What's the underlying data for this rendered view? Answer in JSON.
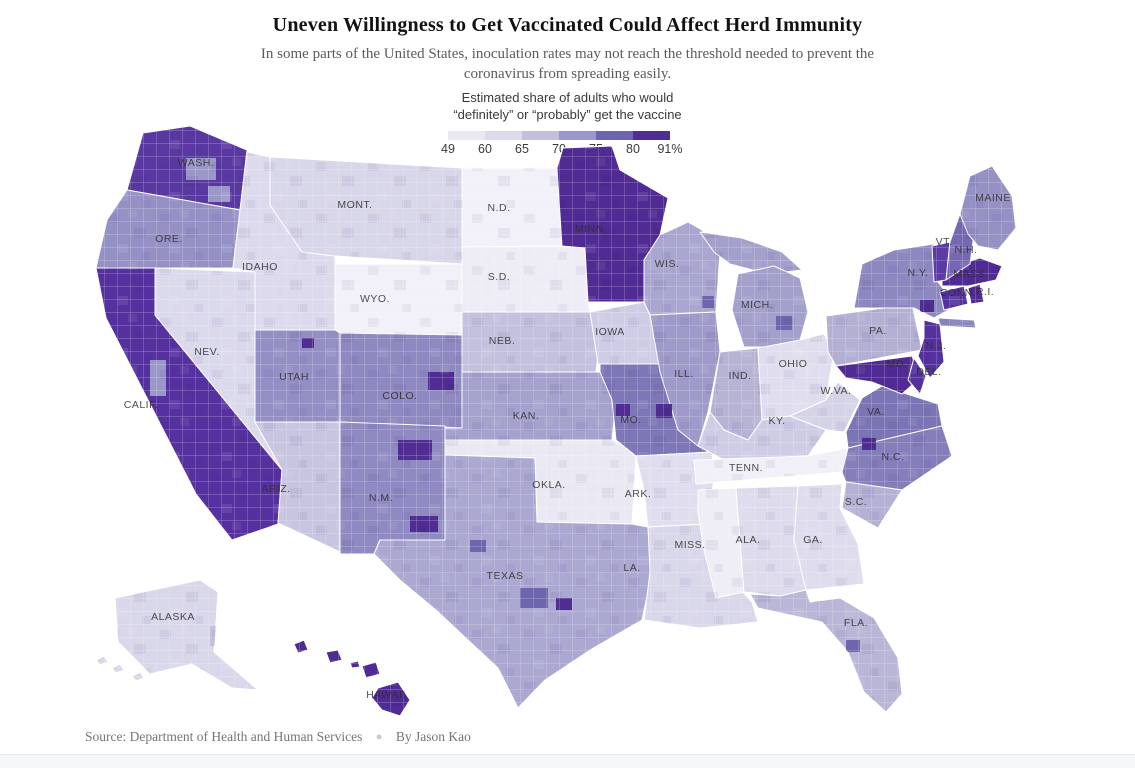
{
  "header": {
    "title": "Uneven Willingness to Get Vaccinated Could Affect Herd Immunity",
    "subtitle": "In some parts of the United States, inoculation rates may not reach the threshold needed to prevent the coronavirus from spreading easily."
  },
  "legend": {
    "label_line1": "Estimated share of adults who would",
    "label_line2": "“definitely” or “probably” get the vaccine",
    "ticks": [
      "49",
      "60",
      "65",
      "70",
      "75",
      "80",
      "91%"
    ],
    "colors": [
      "#eae8f3",
      "#dcdaeb",
      "#c2c0de",
      "#9a97c9",
      "#6d66ae",
      "#4f2d92"
    ]
  },
  "footer": {
    "source_label": "Source:",
    "source": "Department of Health and Human Services",
    "byline": "By Jason Kao"
  },
  "chart_data": {
    "type": "choropleth_map",
    "title": "Estimated share of adults who would \"definitely\" or \"probably\" get the vaccine",
    "geography": "United States counties",
    "value_unit": "percent of adults",
    "scale_breaks": [
      49,
      60,
      65,
      70,
      75,
      80,
      91
    ],
    "legend_position": "top-center",
    "states": [
      {
        "id": "wash",
        "label": "WASH.",
        "approx_share": "80–91",
        "fill": "#5a38a1"
      },
      {
        "id": "ore",
        "label": "ORE.",
        "approx_share": "70–75",
        "fill": "#9591c5"
      },
      {
        "id": "calif",
        "label": "CALIF.",
        "approx_share": "80–91",
        "fill": "#5531a0"
      },
      {
        "id": "nev",
        "label": "NEV.",
        "approx_share": "60–65",
        "fill": "#dbd9ec"
      },
      {
        "id": "idaho",
        "label": "IDAHO",
        "approx_share": "60–65",
        "fill": "#dcdaec"
      },
      {
        "id": "mont",
        "label": "MONT.",
        "approx_share": "60–65",
        "fill": "#d8d6e9"
      },
      {
        "id": "wyo",
        "label": "WYO.",
        "approx_share": "49–60",
        "fill": "#f2f0f8"
      },
      {
        "id": "utah",
        "label": "UTAH",
        "approx_share": "70–75",
        "fill": "#938fc4"
      },
      {
        "id": "colo",
        "label": "COLO.",
        "approx_share": "70–75",
        "fill": "#8e89c0"
      },
      {
        "id": "ariz",
        "label": "ARIZ.",
        "approx_share": "60–65",
        "fill": "#c7c5e0"
      },
      {
        "id": "nm",
        "label": "N.M.",
        "approx_share": "70–75",
        "fill": "#8f8ac1"
      },
      {
        "id": "nd",
        "label": "N.D.",
        "approx_share": "49–60",
        "fill": "#f2f0f8"
      },
      {
        "id": "sd",
        "label": "S.D.",
        "approx_share": "49–60",
        "fill": "#eeecf5"
      },
      {
        "id": "neb",
        "label": "NEB.",
        "approx_share": "65–70",
        "fill": "#c3c1dd"
      },
      {
        "id": "kan",
        "label": "KAN.",
        "approx_share": "70–75",
        "fill": "#a5a2cd"
      },
      {
        "id": "okla",
        "label": "OKLA.",
        "approx_share": "49–60",
        "fill": "#eae8f3"
      },
      {
        "id": "texas",
        "label": "TEXAS",
        "approx_share": "65–70",
        "fill": "#aba8d1"
      },
      {
        "id": "minn",
        "label": "MINN.",
        "approx_share": "80–91",
        "fill": "#4f2b93"
      },
      {
        "id": "iowa",
        "label": "IOWA",
        "approx_share": "60–65",
        "fill": "#cfcde5"
      },
      {
        "id": "mo",
        "label": "MO.",
        "approx_share": "75–80",
        "fill": "#7d77b7"
      },
      {
        "id": "ark",
        "label": "ARK.",
        "approx_share": "60–65",
        "fill": "#dfddee"
      },
      {
        "id": "la",
        "label": "LA.",
        "approx_share": "60–65",
        "fill": "#d9d7ea"
      },
      {
        "id": "wis",
        "label": "WIS.",
        "approx_share": "70–75",
        "fill": "#a9a6d0"
      },
      {
        "id": "ill",
        "label": "ILL.",
        "approx_share": "70–75",
        "fill": "#9e9ac9"
      },
      {
        "id": "mich",
        "label": "MICH.",
        "approx_share": "70–75",
        "fill": "#a3a0cc"
      },
      {
        "id": "ind",
        "label": "IND.",
        "approx_share": "65–70",
        "fill": "#b6b3d5"
      },
      {
        "id": "ohio",
        "label": "OHIO",
        "approx_share": "60–65",
        "fill": "#e0deee"
      },
      {
        "id": "ky",
        "label": "KY.",
        "approx_share": "60–65",
        "fill": "#cfcde5"
      },
      {
        "id": "tenn",
        "label": "TENN.",
        "approx_share": "49–60",
        "fill": "#f1eff7"
      },
      {
        "id": "miss",
        "label": "MISS.",
        "approx_share": "49–60",
        "fill": "#efedf5"
      },
      {
        "id": "ala",
        "label": "ALA.",
        "approx_share": "60–65",
        "fill": "#dddbec"
      },
      {
        "id": "ga",
        "label": "GA.",
        "approx_share": "60–65",
        "fill": "#dedced"
      },
      {
        "id": "fla",
        "label": "FLA.",
        "approx_share": "65–70",
        "fill": "#b9b6d7"
      },
      {
        "id": "wva",
        "label": "W.VA.",
        "approx_share": "60–65",
        "fill": "#d5d3e8"
      },
      {
        "id": "va",
        "label": "VA.",
        "approx_share": "75–80",
        "fill": "#7b75b6"
      },
      {
        "id": "nc",
        "label": "N.C.",
        "approx_share": "75–80",
        "fill": "#847eba"
      },
      {
        "id": "sc",
        "label": "S.C.",
        "approx_share": "65–70",
        "fill": "#b4b1d4"
      },
      {
        "id": "pa",
        "label": "PA.",
        "approx_share": "65–70",
        "fill": "#b3b0d4"
      },
      {
        "id": "ny",
        "label": "N.Y.",
        "approx_share": "70–75",
        "fill": "#8d88c0"
      },
      {
        "id": "nj",
        "label": "N.J.",
        "approx_share": "80–91",
        "fill": "#5531a0"
      },
      {
        "id": "md",
        "label": "MD.",
        "approx_share": "80–91",
        "fill": "#4f2b93"
      },
      {
        "id": "del",
        "label": "DEL.",
        "approx_share": "80–91",
        "fill": "#5531a0"
      },
      {
        "id": "conn",
        "label": "CONN.",
        "approx_share": "80–91",
        "fill": "#54309e"
      },
      {
        "id": "ri",
        "label": "R.I.",
        "approx_share": "80–91",
        "fill": "#4f2b93"
      },
      {
        "id": "mass",
        "label": "MASS.",
        "approx_share": "80–91",
        "fill": "#4f2b93"
      },
      {
        "id": "vt",
        "label": "VT.",
        "approx_share": "80–91",
        "fill": "#5d3ba6"
      },
      {
        "id": "nh",
        "label": "N.H.",
        "approx_share": "75–80",
        "fill": "#7567b2"
      },
      {
        "id": "maine",
        "label": "MAINE",
        "approx_share": "70–75",
        "fill": "#9591c5"
      },
      {
        "id": "alaska",
        "label": "ALASKA",
        "approx_share": "60–65",
        "fill": "#d9d7ea"
      },
      {
        "id": "hawaii",
        "label": "HAWAII",
        "approx_share": "80–91",
        "fill": "#4f2b93"
      }
    ]
  }
}
